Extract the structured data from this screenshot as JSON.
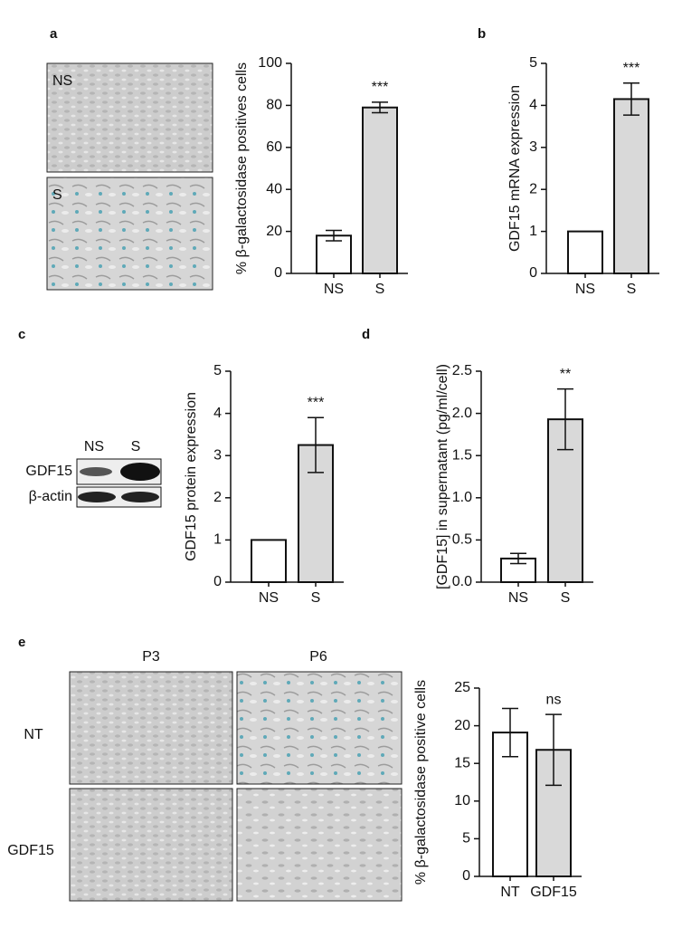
{
  "panel_labels": [
    "a",
    "b",
    "c",
    "d",
    "e"
  ],
  "images": {
    "a_rows": [
      "NS",
      "S"
    ],
    "blot_lanes": [
      "NS",
      "S"
    ],
    "blot_rows": [
      "GDF15",
      "β-actin"
    ],
    "e_columns": [
      "P3",
      "P6"
    ],
    "e_rows": [
      "NT",
      "GDF15"
    ]
  },
  "chart_data": [
    {
      "type": "bar",
      "ylabel": "% β-galactosidase positives cells",
      "categories": [
        "NS",
        "S"
      ],
      "values": [
        18,
        79
      ],
      "errors": [
        2.5,
        2.5
      ],
      "colors": [
        "#ffffff",
        "#d9d9d9"
      ],
      "annotation": "***",
      "ylim": [
        0,
        100
      ],
      "yticks": [
        0,
        20,
        40,
        60,
        80,
        100
      ]
    },
    {
      "type": "bar",
      "ylabel": "GDF15 mRNA expression",
      "categories": [
        "NS",
        "S"
      ],
      "values": [
        1,
        4.15
      ],
      "errors": [
        null,
        0.38
      ],
      "colors": [
        "#ffffff",
        "#d9d9d9"
      ],
      "annotation": "***",
      "ylim": [
        0,
        5
      ],
      "yticks": [
        0,
        1,
        2,
        3,
        4,
        5
      ]
    },
    {
      "type": "bar",
      "ylabel": "GDF15 protein expression",
      "categories": [
        "NS",
        "S"
      ],
      "values": [
        1,
        3.25
      ],
      "errors": [
        null,
        0.65
      ],
      "colors": [
        "#ffffff",
        "#d9d9d9"
      ],
      "annotation": "***",
      "ylim": [
        0,
        5
      ],
      "yticks": [
        0,
        1,
        2,
        3,
        4,
        5
      ]
    },
    {
      "type": "bar",
      "ylabel": "[GDF15] in supernatant  (pg/ml/cell)",
      "categories": [
        "NS",
        "S"
      ],
      "values": [
        0.28,
        1.93
      ],
      "errors": [
        0.06,
        0.36
      ],
      "colors": [
        "#ffffff",
        "#d9d9d9"
      ],
      "annotation": "**",
      "ylim": [
        0,
        2.5
      ],
      "yticks": [
        {
          "value": 0,
          "label": "0.0"
        },
        {
          "value": 0.5,
          "label": "0.5"
        },
        {
          "value": 1,
          "label": "1.0"
        },
        {
          "value": 1.5,
          "label": "1.5"
        },
        {
          "value": 2,
          "label": "2.0"
        },
        {
          "value": 2.5,
          "label": "2.5"
        }
      ]
    },
    {
      "type": "bar",
      "ylabel": "% β-galactosidase positive cells",
      "categories": [
        "NT",
        "GDF15"
      ],
      "values": [
        19.1,
        16.8
      ],
      "errors": [
        3.2,
        4.7
      ],
      "colors": [
        "#ffffff",
        "#d9d9d9"
      ],
      "annotation": "ns",
      "annotation_index": 1,
      "ylim": [
        0,
        25
      ],
      "yticks": [
        0,
        5,
        10,
        15,
        20,
        25
      ]
    }
  ]
}
